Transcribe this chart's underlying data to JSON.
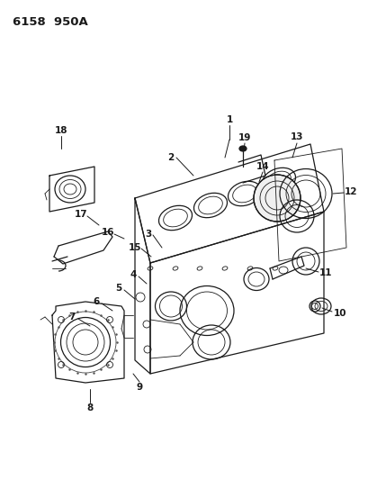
{
  "title_display": "6158  950A",
  "bg_color": "#ffffff",
  "line_color": "#1a1a1a",
  "fig_width": 4.1,
  "fig_height": 5.33,
  "dpi": 100,
  "header_fontsize": 9.5,
  "label_fontsize": 7.5
}
